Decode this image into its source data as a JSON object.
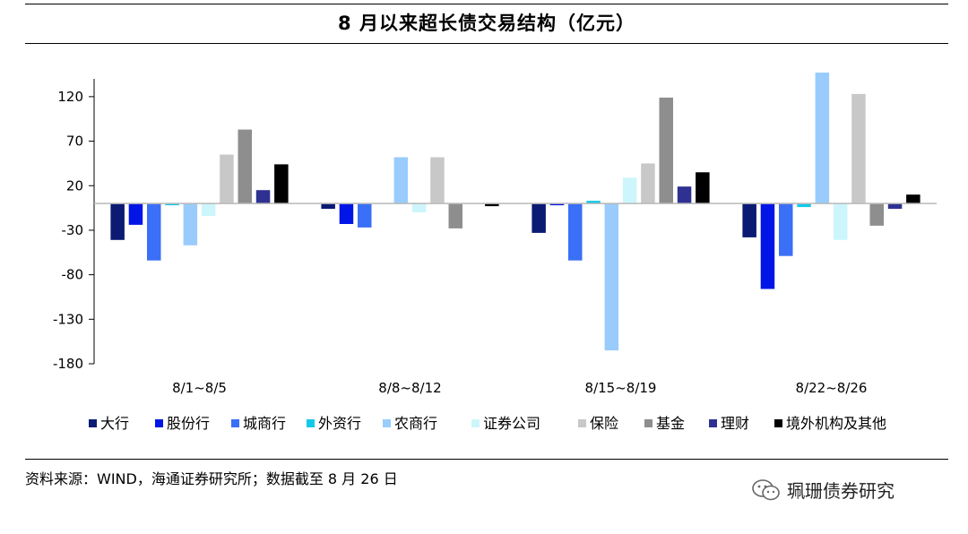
{
  "title": "8 月以来超长债交易结构（亿元）",
  "source": "资料来源：WIND，海通证券研究所；数据截至 8 月 26 日",
  "watermark": "珮珊债券研究",
  "chart_data": {
    "type": "bar",
    "title": "8 月以来超长债交易结构（亿元）",
    "xlabel": "",
    "ylabel": "",
    "ylim": [
      -180,
      140
    ],
    "yticks": [
      120,
      70,
      20,
      -30,
      -80,
      -130,
      -180
    ],
    "grid": false,
    "legend_position": "bottom",
    "categories": [
      "8/1~8/5",
      "8/8~8/12",
      "8/15~8/19",
      "8/22~8/26"
    ],
    "series": [
      {
        "name": "大行",
        "color": "#0b1a72",
        "values": [
          -41,
          -6,
          -33,
          -38
        ]
      },
      {
        "name": "股份行",
        "color": "#0015e6",
        "values": [
          -24,
          -23,
          -2,
          -96
        ]
      },
      {
        "name": "城商行",
        "color": "#3a6ff7",
        "values": [
          -64,
          -27,
          -64,
          -59
        ]
      },
      {
        "name": "外资行",
        "color": "#13c9e8",
        "values": [
          -2,
          0,
          3,
          -4
        ]
      },
      {
        "name": "农商行",
        "color": "#99ccfc",
        "values": [
          -47,
          52,
          -165,
          147
        ]
      },
      {
        "name": "证券公司",
        "color": "#ccf6fb",
        "values": [
          -14,
          -10,
          29,
          -41
        ]
      },
      {
        "name": "保险",
        "color": "#c8c8c8",
        "values": [
          55,
          52,
          45,
          123
        ]
      },
      {
        "name": "基金",
        "color": "#8e8e8e",
        "values": [
          83,
          -28,
          119,
          -25
        ]
      },
      {
        "name": "理财",
        "color": "#2e3191",
        "values": [
          15,
          0,
          19,
          -6
        ]
      },
      {
        "name": "境外机构及其他",
        "color": "#000000",
        "values": [
          44,
          -3,
          35,
          10
        ]
      }
    ]
  }
}
